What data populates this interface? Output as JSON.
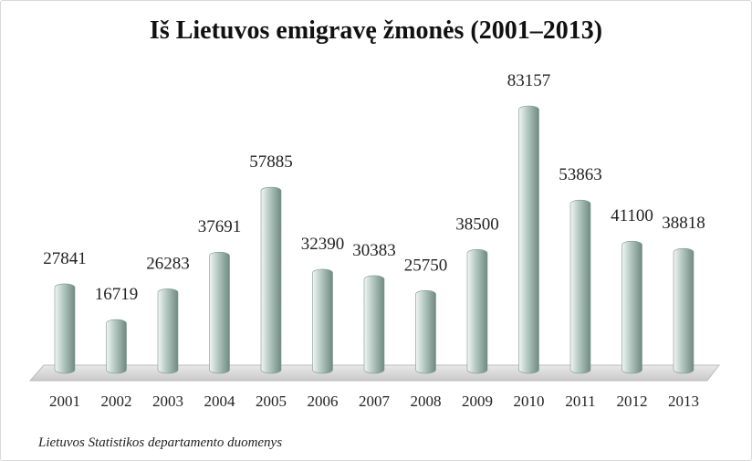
{
  "chart_data": {
    "type": "bar",
    "title": "Iš Lietuvos emigravę žmonės (2001–2013)",
    "categories": [
      "2001",
      "2002",
      "2003",
      "2004",
      "2005",
      "2006",
      "2007",
      "2008",
      "2009",
      "2010",
      "2011",
      "2012",
      "2013"
    ],
    "values": [
      27841,
      16719,
      26283,
      37691,
      57885,
      32390,
      30383,
      25750,
      38500,
      83157,
      53863,
      41100,
      38818
    ],
    "value_labels": [
      "27841",
      "16719",
      "26283",
      "37691",
      "57885",
      "32390",
      "30383",
      "25750",
      "38500",
      "83157",
      "53863",
      "41100",
      "38818"
    ],
    "xlabel": "",
    "ylabel": "",
    "ylim": [
      0,
      83157
    ],
    "grid": false,
    "legend": "none",
    "colors": {
      "bar_light": "#f2f6f4",
      "bar_mid": "#b9cdc6",
      "bar_dark": "#6f8a81",
      "floor": "#dcdcdc"
    }
  },
  "source_note": "Lietuvos Statistikos departamento duomenys"
}
